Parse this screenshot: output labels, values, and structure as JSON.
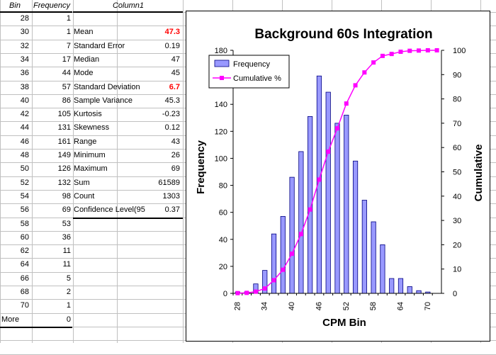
{
  "table": {
    "headers": {
      "bin": "Bin",
      "frequency": "Frequency",
      "column1": "Column1"
    },
    "rows": [
      {
        "bin": "28",
        "frequency": "1"
      },
      {
        "bin": "30",
        "frequency": "1"
      },
      {
        "bin": "32",
        "frequency": "7"
      },
      {
        "bin": "34",
        "frequency": "17"
      },
      {
        "bin": "36",
        "frequency": "44"
      },
      {
        "bin": "38",
        "frequency": "57"
      },
      {
        "bin": "40",
        "frequency": "86"
      },
      {
        "bin": "42",
        "frequency": "105"
      },
      {
        "bin": "44",
        "frequency": "131"
      },
      {
        "bin": "46",
        "frequency": "161"
      },
      {
        "bin": "48",
        "frequency": "149"
      },
      {
        "bin": "50",
        "frequency": "126"
      },
      {
        "bin": "52",
        "frequency": "132"
      },
      {
        "bin": "54",
        "frequency": "98"
      },
      {
        "bin": "56",
        "frequency": "69"
      },
      {
        "bin": "58",
        "frequency": "53"
      },
      {
        "bin": "60",
        "frequency": "36"
      },
      {
        "bin": "62",
        "frequency": "11"
      },
      {
        "bin": "64",
        "frequency": "11"
      },
      {
        "bin": "66",
        "frequency": "5"
      },
      {
        "bin": "68",
        "frequency": "2"
      },
      {
        "bin": "70",
        "frequency": "1"
      },
      {
        "bin": "More",
        "frequency": "0"
      }
    ]
  },
  "stats": [
    {
      "label": "Mean",
      "value": "47.3",
      "highlight": true
    },
    {
      "label": "Standard Error",
      "value": "0.19",
      "highlight": false
    },
    {
      "label": "Median",
      "value": "47",
      "highlight": false
    },
    {
      "label": "Mode",
      "value": "45",
      "highlight": false
    },
    {
      "label": "Standard Deviation",
      "value": "6.7",
      "highlight": true
    },
    {
      "label": "Sample Variance",
      "value": "45.3",
      "highlight": false
    },
    {
      "label": "Kurtosis",
      "value": "-0.23",
      "highlight": false
    },
    {
      "label": "Skewness",
      "value": "0.12",
      "highlight": false
    },
    {
      "label": "Range",
      "value": "43",
      "highlight": false
    },
    {
      "label": "Minimum",
      "value": "26",
      "highlight": false
    },
    {
      "label": "Maximum",
      "value": "69",
      "highlight": false
    },
    {
      "label": "Sum",
      "value": "61589",
      "highlight": false
    },
    {
      "label": "Count",
      "value": "1303",
      "highlight": false
    },
    {
      "label": "Confidence Level(95",
      "value": "0.37",
      "highlight": false
    }
  ],
  "colors": {
    "bar_fill": "#9999ff",
    "bar_stroke": "#000080",
    "cumulative": "#ff00ff",
    "highlight_text": "#ff0000",
    "gridline": "#c0c0c0"
  },
  "chart_data": {
    "type": "bar",
    "title": "Background  60s Integration",
    "xlabel": "CPM Bin",
    "ylabel": "Frequency",
    "y2label": "Cumulative",
    "categories": [
      "28",
      "30",
      "32",
      "34",
      "36",
      "38",
      "40",
      "42",
      "44",
      "46",
      "48",
      "50",
      "52",
      "54",
      "56",
      "58",
      "60",
      "62",
      "64",
      "66",
      "68",
      "70",
      "More"
    ],
    "x_tick_labels": [
      "28",
      "34",
      "40",
      "46",
      "52",
      "58",
      "64",
      "70"
    ],
    "series": [
      {
        "name": "Frequency",
        "kind": "bar",
        "axis": "left",
        "values": [
          1,
          1,
          7,
          17,
          44,
          57,
          86,
          105,
          131,
          161,
          149,
          126,
          132,
          98,
          69,
          53,
          36,
          11,
          11,
          5,
          2,
          1,
          0
        ]
      },
      {
        "name": "Cumulative %",
        "kind": "line",
        "axis": "right",
        "values": [
          0.1,
          0.2,
          0.7,
          2.0,
          5.4,
          9.7,
          16.3,
          24.4,
          34.5,
          46.8,
          58.3,
          67.9,
          78.1,
          85.6,
          90.9,
          95.0,
          97.7,
          98.5,
          99.4,
          99.8,
          99.9,
          100.0,
          100.0
        ]
      }
    ],
    "ylim": [
      0,
      180
    ],
    "y_ticks": [
      "0",
      "20",
      "40",
      "60",
      "80",
      "100",
      "120",
      "140",
      "160",
      "180"
    ],
    "y2lim": [
      0,
      100
    ],
    "y2_ticks": [
      "0",
      "10",
      "20",
      "30",
      "40",
      "50",
      "60",
      "70",
      "80",
      "90",
      "100"
    ],
    "grid": false,
    "legend_position": "top-left"
  }
}
